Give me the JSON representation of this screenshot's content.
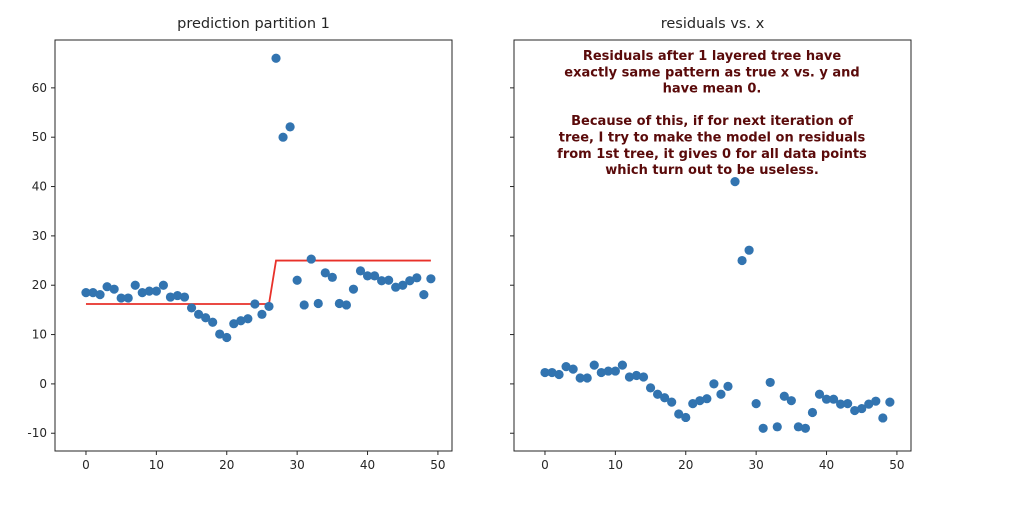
{
  "chart_data": [
    {
      "type": "scatter",
      "title": "prediction partition 1",
      "xlim": [
        -4.4,
        52
      ],
      "ylim": [
        -13.6,
        69.7
      ],
      "xticks": [
        0,
        10,
        20,
        30,
        40,
        50
      ],
      "yticks": [
        -10,
        0,
        10,
        20,
        30,
        40,
        50,
        60
      ],
      "grid": false,
      "point_color": "#3274b0",
      "line_color": "#e8312a",
      "x": [
        0,
        1,
        2,
        3,
        4,
        5,
        6,
        7,
        8,
        9,
        10,
        11,
        12,
        13,
        14,
        15,
        16,
        17,
        18,
        19,
        20,
        21,
        22,
        23,
        24,
        25,
        26,
        27,
        28,
        29,
        30,
        31,
        32,
        33,
        34,
        35,
        36,
        37,
        38,
        39,
        40,
        41,
        42,
        43,
        44,
        45,
        46,
        47,
        48,
        49
      ],
      "y": [
        18.5,
        18.5,
        18.1,
        19.7,
        19.2,
        17.4,
        17.4,
        20,
        18.5,
        18.8,
        18.8,
        20,
        17.6,
        17.9,
        17.6,
        15.4,
        14.1,
        13.4,
        12.5,
        10.1,
        9.4,
        12.2,
        12.8,
        13.2,
        16.2,
        14.1,
        15.7,
        66,
        50,
        52.1,
        21,
        16,
        25.3,
        16.3,
        22.5,
        21.6,
        16.3,
        16,
        19.2,
        22.9,
        21.9,
        21.9,
        20.9,
        21,
        19.6,
        20,
        20.9,
        21.5,
        18.1,
        21.3
      ],
      "prediction_line": {
        "x": [
          0,
          26,
          27,
          49
        ],
        "y": [
          16.2,
          16.2,
          25,
          25
        ]
      }
    },
    {
      "type": "scatter",
      "title": "residuals vs. x",
      "xlim": [
        -4.4,
        52
      ],
      "ylim": [
        -13.6,
        69.7
      ],
      "xticks": [
        0,
        10,
        20,
        30,
        40,
        50
      ],
      "yticks": [
        -10,
        0,
        10,
        20,
        30,
        40,
        50,
        60
      ],
      "shared_y": true,
      "grid": false,
      "point_color": "#3274b0",
      "x": [
        0,
        1,
        2,
        3,
        4,
        5,
        6,
        7,
        8,
        9,
        10,
        11,
        12,
        13,
        14,
        15,
        16,
        17,
        18,
        19,
        20,
        21,
        22,
        23,
        24,
        25,
        26,
        27,
        28,
        29,
        30,
        31,
        32,
        33,
        34,
        35,
        36,
        37,
        38,
        39,
        40,
        41,
        42,
        43,
        44,
        45,
        46,
        47,
        48,
        49
      ],
      "y": [
        2.3,
        2.3,
        1.9,
        3.5,
        3.0,
        1.2,
        1.2,
        3.8,
        2.3,
        2.6,
        2.6,
        3.8,
        1.4,
        1.7,
        1.4,
        -0.8,
        -2.1,
        -2.8,
        -3.7,
        -6.1,
        -6.8,
        -4.0,
        -3.4,
        -3.0,
        0,
        -2.1,
        -0.5,
        41,
        25,
        27.1,
        -4,
        -9,
        0.3,
        -8.7,
        -2.5,
        -3.4,
        -8.7,
        -9,
        -5.8,
        -2.1,
        -3.1,
        -3.1,
        -4.1,
        -4,
        -5.4,
        -5,
        -4.1,
        -3.5,
        -6.9,
        -3.7
      ],
      "annotation": {
        "color": "#5a0a0a",
        "lines": [
          "Residuals after 1 layered tree have",
          "exactly same pattern as true x vs. y and",
          "have mean 0.",
          "",
          "Because of this, if for next iteration of",
          "tree, I try to make the model on residuals",
          "from 1st tree, it gives 0 for all data points",
          "which turn out to be useless."
        ]
      }
    }
  ]
}
